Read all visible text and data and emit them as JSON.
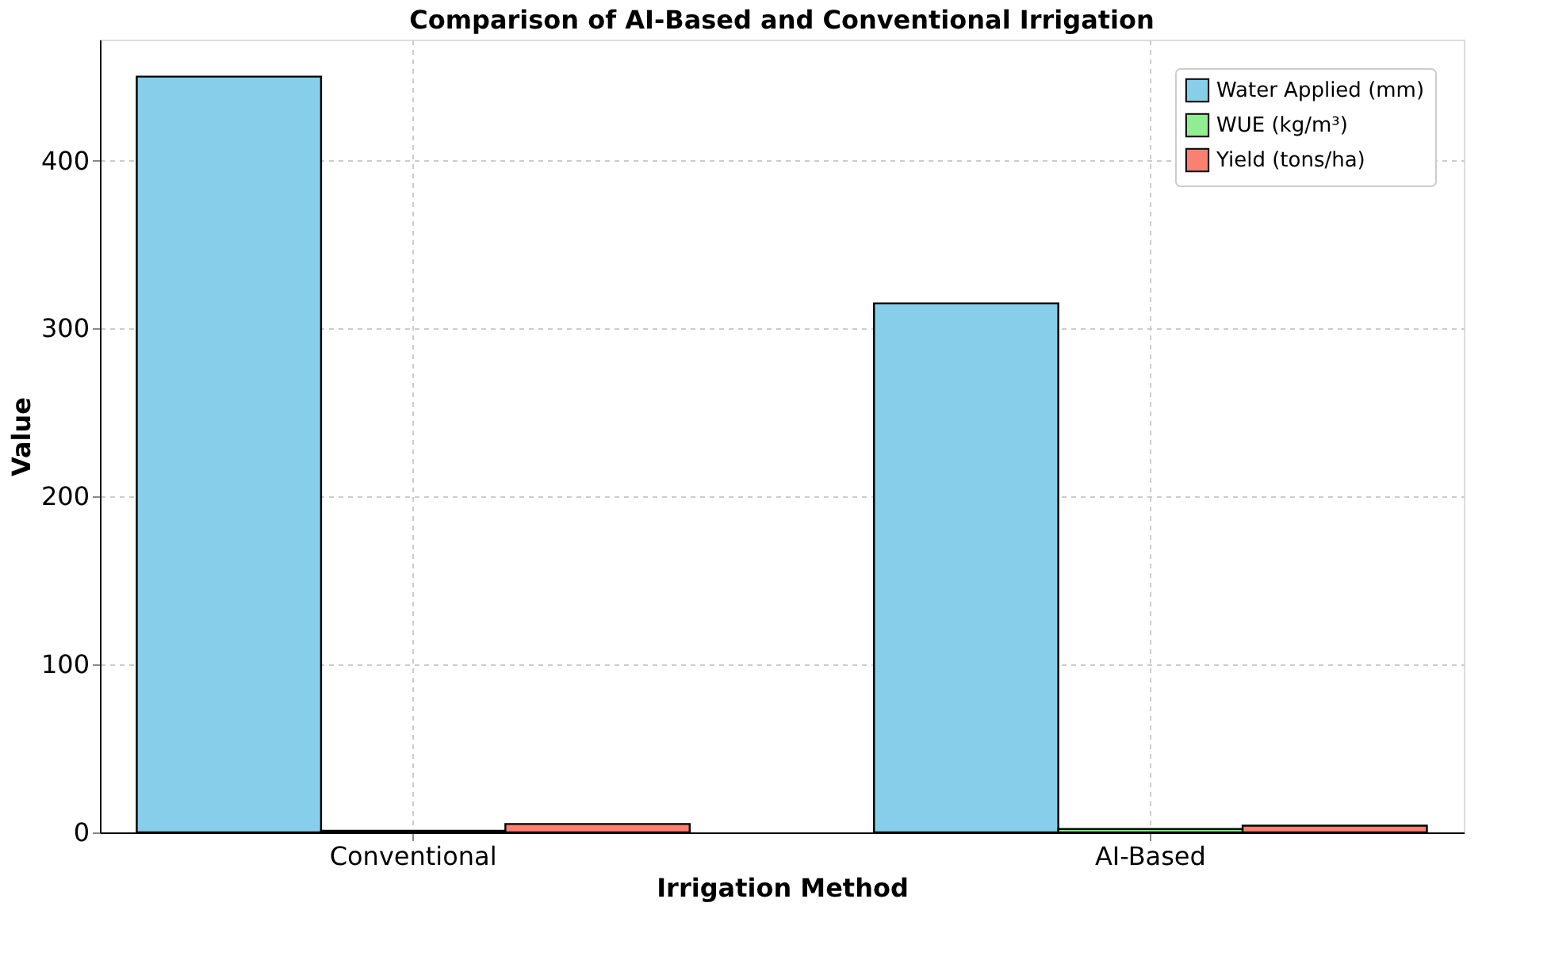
{
  "chart_data": {
    "type": "bar",
    "title": "Comparison of AI-Based and Conventional Irrigation",
    "xlabel": "Irrigation Method",
    "ylabel": "Value",
    "categories": [
      "Conventional",
      "AI-Based"
    ],
    "series": [
      {
        "name": "Water Applied (mm)",
        "color": "#87ceeb",
        "values": [
          450,
          315
        ]
      },
      {
        "name": "WUE (kg/m³)",
        "color": "#90ee90",
        "values": [
          1,
          2
        ]
      },
      {
        "name": "Yield (tons/ha)",
        "color": "#fa8072",
        "values": [
          5,
          4
        ]
      }
    ],
    "ylim": [
      0,
      472
    ],
    "yticks": [
      0,
      100,
      200,
      300,
      400
    ],
    "grid": true,
    "legend": "top right"
  }
}
